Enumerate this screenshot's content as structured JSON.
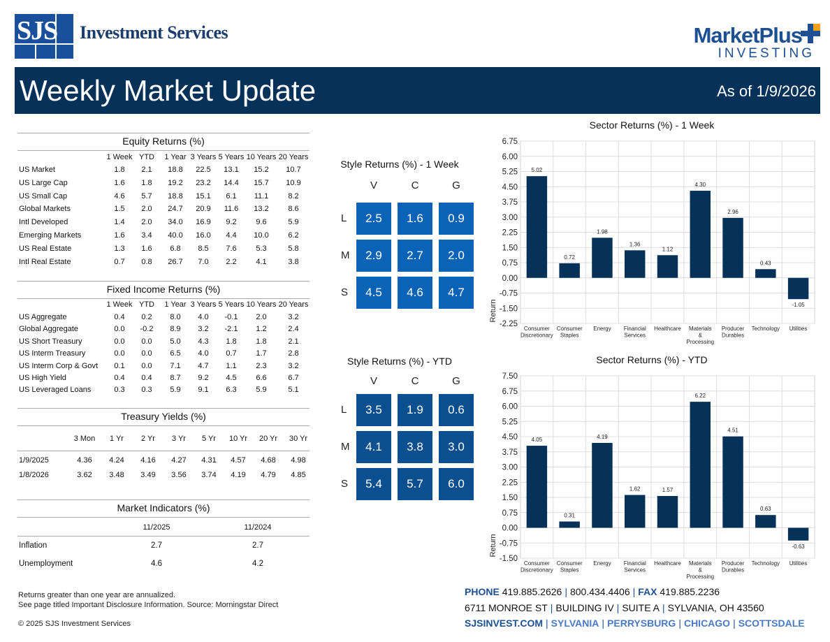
{
  "header": {
    "logo_mark": "SJS",
    "company_name": "Investment Services",
    "partner_name": "MarketPlus",
    "partner_sub": "INVESTING",
    "title": "Weekly Market Update",
    "as_of": "As of 1/9/2026",
    "colors": {
      "banner": "#06325a",
      "brand_blue": "#1d4f93",
      "accent_orange": "#f5a01a"
    }
  },
  "equity": {
    "title": "Equity Returns (%)",
    "columns": [
      "1 Week",
      "YTD",
      "1 Year",
      "3 Years",
      "5 Years",
      "10 Years",
      "20 Years"
    ],
    "rows": [
      {
        "label": "US Market",
        "values": [
          "1.8",
          "2.1",
          "18.8",
          "22.5",
          "13.1",
          "15.2",
          "10.7"
        ]
      },
      {
        "label": "US Large Cap",
        "values": [
          "1.6",
          "1.8",
          "19.2",
          "23.2",
          "14.4",
          "15.7",
          "10.9"
        ]
      },
      {
        "label": "US Small Cap",
        "values": [
          "4.6",
          "5.7",
          "18.8",
          "15.1",
          "6.1",
          "11.1",
          "8.2"
        ]
      },
      {
        "label": "Global Markets",
        "values": [
          "1.5",
          "2.0",
          "24.7",
          "20.9",
          "11.6",
          "13.2",
          "8.6"
        ]
      },
      {
        "label": "Intl Developed",
        "values": [
          "1.4",
          "2.0",
          "34.0",
          "16.9",
          "9.2",
          "9.6",
          "5.9"
        ]
      },
      {
        "label": "Emerging Markets",
        "values": [
          "1.6",
          "3.4",
          "40.0",
          "16.0",
          "4.4",
          "10.0",
          "6.2"
        ]
      },
      {
        "label": "US Real Estate",
        "values": [
          "1.3",
          "1.6",
          "6.8",
          "8.5",
          "7.6",
          "5.3",
          "5.8"
        ]
      },
      {
        "label": "Intl Real Estate",
        "values": [
          "0.7",
          "0.8",
          "26.7",
          "7.0",
          "2.2",
          "4.1",
          "3.8"
        ]
      }
    ]
  },
  "fixed": {
    "title": "Fixed Income Returns (%)",
    "columns": [
      "1 Week",
      "YTD",
      "1 Year",
      "3 Years",
      "5 Years",
      "10 Years",
      "20 Years"
    ],
    "rows": [
      {
        "label": "US Aggregate",
        "values": [
          "0.4",
          "0.2",
          "8.0",
          "4.0",
          "-0.1",
          "2.0",
          "3.2"
        ]
      },
      {
        "label": "Global Aggregate",
        "values": [
          "0.0",
          "-0.2",
          "8.9",
          "3.2",
          "-2.1",
          "1.2",
          "2.4"
        ]
      },
      {
        "label": "US Short Treasury",
        "values": [
          "0.0",
          "0.0",
          "5.0",
          "4.3",
          "1.8",
          "1.8",
          "2.1"
        ]
      },
      {
        "label": "US Interm Treasury",
        "values": [
          "0.0",
          "0.0",
          "6.5",
          "4.0",
          "0.7",
          "1.7",
          "2.8"
        ]
      },
      {
        "label": "US Interm Corp & Govt",
        "values": [
          "0.1",
          "0.0",
          "7.1",
          "4.7",
          "1.1",
          "2.3",
          "3.2"
        ]
      },
      {
        "label": "US High Yield",
        "values": [
          "0.4",
          "0.4",
          "8.7",
          "9.2",
          "4.5",
          "6.6",
          "6.7"
        ]
      },
      {
        "label": "US Leveraged Loans",
        "values": [
          "0.3",
          "0.3",
          "5.9",
          "9.1",
          "6.3",
          "5.9",
          "5.1"
        ]
      }
    ]
  },
  "treasury": {
    "title": "Treasury Yields (%)",
    "columns": [
      "3 Mon",
      "1 Yr",
      "2 Yr",
      "3 Yr",
      "5 Yr",
      "10 Yr",
      "20 Yr",
      "30 Yr"
    ],
    "rows": [
      {
        "label": "1/9/2025",
        "values": [
          "4.36",
          "4.24",
          "4.16",
          "4.27",
          "4.31",
          "4.57",
          "4.68",
          "4.98"
        ]
      },
      {
        "label": "1/8/2026",
        "values": [
          "3.62",
          "3.48",
          "3.49",
          "3.56",
          "3.74",
          "4.19",
          "4.79",
          "4.85"
        ]
      }
    ]
  },
  "indicators": {
    "title": "Market Indicators (%)",
    "columns": [
      "11/2025",
      "11/2024"
    ],
    "rows": [
      {
        "label": "Inflation",
        "values": [
          "2.7",
          "2.7"
        ]
      },
      {
        "label": "Unemployment",
        "values": [
          "4.6",
          "4.2"
        ]
      }
    ]
  },
  "style_week": {
    "title": "Style Returns (%)  - 1 Week",
    "cols": [
      "V",
      "C",
      "G"
    ],
    "rows": [
      "L",
      "M",
      "S"
    ],
    "values": [
      [
        "2.5",
        "1.6",
        "0.9"
      ],
      [
        "2.9",
        "2.7",
        "2.0"
      ],
      [
        "4.5",
        "4.6",
        "4.7"
      ]
    ]
  },
  "style_ytd": {
    "title": "Style Returns (%)  - YTD",
    "cols": [
      "V",
      "C",
      "G"
    ],
    "rows": [
      "L",
      "M",
      "S"
    ],
    "values": [
      [
        "3.5",
        "1.9",
        "0.6"
      ],
      [
        "4.1",
        "3.8",
        "3.0"
      ],
      [
        "5.4",
        "5.7",
        "6.0"
      ]
    ]
  },
  "chart_data": [
    {
      "type": "bar",
      "title": "Sector Returns (%)  - 1 Week",
      "ylabel": "Return",
      "categories": [
        "Consumer Discretionary",
        "Consumer Staples",
        "Energy",
        "Financial Services",
        "Healthcare",
        "Materials & Processing",
        "Producer Durables",
        "Technology",
        "Utilities"
      ],
      "values": [
        5.02,
        0.72,
        1.98,
        1.36,
        1.12,
        4.3,
        2.96,
        0.43,
        -1.05
      ],
      "value_labels": [
        "5.02",
        "0.72",
        "1.98",
        "1.36",
        "1.12",
        "4.30",
        "2.96",
        "0.43",
        "-1.05"
      ],
      "ylim": [
        -2.25,
        6.75
      ],
      "yticks": [
        "6.75",
        "6.00",
        "5.25",
        "4.50",
        "3.75",
        "3.00",
        "2.25",
        "1.50",
        "0.75",
        "0.00",
        "-0.75",
        "-1.50",
        "-2.25"
      ],
      "ytick_values": [
        6.75,
        6.0,
        5.25,
        4.5,
        3.75,
        3.0,
        2.25,
        1.5,
        0.75,
        0,
        -0.75,
        -1.5,
        -2.25
      ],
      "bar_color": "#06325a",
      "grid": true
    },
    {
      "type": "bar",
      "title": "Sector Returns (%)  - YTD",
      "ylabel": "Return",
      "categories": [
        "Consumer Discretionary",
        "Consumer Staples",
        "Energy",
        "Financial Services",
        "Healthcare",
        "Materials & Processing",
        "Producer Durables",
        "Technology",
        "Utilities"
      ],
      "values": [
        4.05,
        0.31,
        4.19,
        1.62,
        1.57,
        6.22,
        4.51,
        0.63,
        -0.63
      ],
      "value_labels": [
        "4.05",
        "0.31",
        "4.19",
        "1.62",
        "1.57",
        "6.22",
        "4.51",
        "0.63",
        "-0.63"
      ],
      "ylim": [
        -1.5,
        7.5
      ],
      "yticks": [
        "7.50",
        "6.75",
        "6.00",
        "5.25",
        "4.50",
        "3.75",
        "3.00",
        "2.25",
        "1.50",
        "0.75",
        "0.00",
        "-0.75",
        "-1.50"
      ],
      "ytick_values": [
        7.5,
        6.75,
        6.0,
        5.25,
        4.5,
        3.75,
        3.0,
        2.25,
        1.5,
        0.75,
        0,
        -0.75,
        -1.5
      ],
      "bar_color": "#06325a",
      "grid": true
    }
  ],
  "footer": {
    "note1": "Returns greater than one year are annualized.",
    "note2": "See page titled Important Disclosure Information. Source: Morningstar Direct",
    "copyright": "© 2025 SJS Investment Services",
    "phone_label": "PHONE",
    "phone1": "419.885.2626",
    "phone2": "800.434.4406",
    "fax_label": "FAX",
    "fax": "419.885.2236",
    "address": [
      "6711 MONROE ST",
      "BUILDING IV",
      "SUITE A",
      "SYLVANIA, OH 43560"
    ],
    "website": "SJSINVEST.COM",
    "cities": [
      "SYLVANIA",
      "PERRYSBURG",
      "CHICAGO",
      "SCOTTSDALE"
    ]
  }
}
